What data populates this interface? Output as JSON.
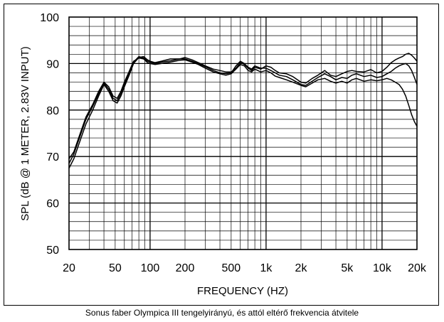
{
  "caption": "Sonus faber Olympica III tengelyirányú, és attól eltérő frekvencia átvitele",
  "chart_data": {
    "type": "line",
    "xlabel": "FREQUENCY (HZ)",
    "ylabel": "SPL (dB @ 1 METER, 2.83V INPUT)",
    "xscale": "log",
    "xlim": [
      20,
      20000
    ],
    "ylim": [
      50,
      100
    ],
    "x_ticks": [
      {
        "value": 20,
        "label": "20"
      },
      {
        "value": 50,
        "label": "50"
      },
      {
        "value": 100,
        "label": "100"
      },
      {
        "value": 200,
        "label": "200"
      },
      {
        "value": 500,
        "label": "500"
      },
      {
        "value": 1000,
        "label": "1k"
      },
      {
        "value": 2000,
        "label": "2k"
      },
      {
        "value": 5000,
        "label": "5k"
      },
      {
        "value": 10000,
        "label": "10k"
      },
      {
        "value": 20000,
        "label": "20k"
      }
    ],
    "y_ticks": [
      50,
      60,
      70,
      80,
      90,
      100
    ],
    "grid": true,
    "series": [
      {
        "x": [
          20,
          22,
          25,
          28,
          32,
          36,
          40,
          44,
          48,
          52,
          56,
          60,
          66,
          72,
          80,
          88,
          95,
          100,
          110,
          125,
          150,
          180,
          200,
          230,
          260,
          300,
          350,
          400,
          450,
          500,
          550,
          600,
          650,
          700,
          750,
          800,
          900,
          1000,
          1100,
          1200,
          1300,
          1500,
          1700,
          2000,
          2200,
          2500,
          2800,
          3200,
          3600,
          4000,
          4500,
          5000,
          5500,
          6000,
          7000,
          8000,
          9000,
          10000,
          11000,
          12000,
          13000,
          14000,
          15000,
          16000,
          17000,
          18000,
          19000,
          20000
        ],
        "y": [
          67.5,
          69.5,
          73.5,
          77,
          80,
          83,
          85.5,
          84,
          82,
          81.5,
          83,
          85,
          87.5,
          90,
          91.3,
          91.5,
          90.8,
          90.5,
          90.2,
          90.5,
          91,
          91,
          91.3,
          90.8,
          90.2,
          89.5,
          88.8,
          88.5,
          88.2,
          88.2,
          89,
          90.2,
          89.8,
          89,
          88.5,
          89.2,
          88.8,
          89.5,
          89.2,
          88.5,
          88,
          87.8,
          87.2,
          86,
          85.8,
          86.8,
          87.5,
          88.5,
          87.5,
          87.2,
          87.8,
          88.3,
          88.5,
          88.3,
          88.2,
          88.7,
          88,
          88.3,
          89.2,
          90.2,
          90.8,
          91.2,
          91.5,
          92,
          92.2,
          91.8,
          91.2,
          90.5
        ]
      },
      {
        "x": [
          20,
          22,
          25,
          28,
          32,
          36,
          40,
          44,
          48,
          52,
          56,
          60,
          66,
          72,
          80,
          88,
          95,
          100,
          110,
          125,
          150,
          180,
          200,
          230,
          260,
          300,
          350,
          400,
          450,
          500,
          550,
          600,
          650,
          700,
          750,
          800,
          900,
          1000,
          1100,
          1200,
          1300,
          1500,
          1700,
          2000,
          2200,
          2500,
          2800,
          3200,
          3600,
          4000,
          4500,
          5000,
          5500,
          6000,
          7000,
          8000,
          9000,
          10000,
          11000,
          12000,
          13000,
          14000,
          15000,
          16000,
          17000,
          18000,
          19000,
          20000
        ],
        "y": [
          68.5,
          70.5,
          74.5,
          78,
          80.8,
          83.5,
          85.8,
          84.5,
          82.5,
          82,
          83.5,
          85.5,
          88,
          90.3,
          91.5,
          91.2,
          90.5,
          90.3,
          90,
          90.3,
          90.6,
          91,
          91,
          90.5,
          90,
          89.3,
          88.5,
          88,
          87.8,
          88,
          89.5,
          90.5,
          90,
          89.2,
          88.8,
          89.5,
          89,
          89,
          88.5,
          88,
          87.5,
          87.2,
          86.5,
          85.5,
          85.3,
          86.2,
          87,
          87.8,
          87.2,
          86.5,
          87,
          86.8,
          87.5,
          87.8,
          87.2,
          87.5,
          87,
          87.2,
          87.8,
          88.3,
          89,
          89.5,
          89.8,
          90,
          89.5,
          88.5,
          87,
          85.5
        ]
      },
      {
        "x": [
          20,
          22,
          25,
          28,
          32,
          36,
          40,
          44,
          48,
          52,
          56,
          60,
          66,
          72,
          80,
          88,
          95,
          100,
          110,
          125,
          150,
          180,
          200,
          230,
          260,
          300,
          350,
          400,
          450,
          500,
          550,
          600,
          650,
          700,
          750,
          800,
          900,
          1000,
          1100,
          1200,
          1300,
          1500,
          1700,
          2000,
          2200,
          2500,
          2800,
          3200,
          3600,
          4000,
          4500,
          5000,
          5500,
          6000,
          7000,
          8000,
          9000,
          10000,
          11000,
          12000,
          13000,
          14000,
          15000,
          16000,
          17000,
          18000,
          19000,
          20000
        ],
        "y": [
          69.5,
          71,
          75,
          78.5,
          81.2,
          84,
          86,
          85,
          83,
          82.5,
          84,
          86,
          88.3,
          90.5,
          91.2,
          91,
          90.2,
          90,
          89.8,
          90,
          90.3,
          90.7,
          90.8,
          90.3,
          89.8,
          89,
          88.2,
          87.8,
          87.5,
          87.8,
          88.8,
          89.8,
          89.5,
          88.5,
          88.2,
          88.8,
          88.2,
          88.5,
          88,
          87.3,
          87,
          86.5,
          86,
          85.3,
          85,
          85.8,
          86.5,
          86.8,
          86.2,
          85.8,
          86.2,
          85.8,
          86.5,
          86.8,
          86.2,
          86.5,
          86.3,
          86.5,
          86.8,
          86.5,
          86,
          85.5,
          84.5,
          83,
          81,
          79,
          77.5,
          76.5
        ]
      }
    ]
  }
}
